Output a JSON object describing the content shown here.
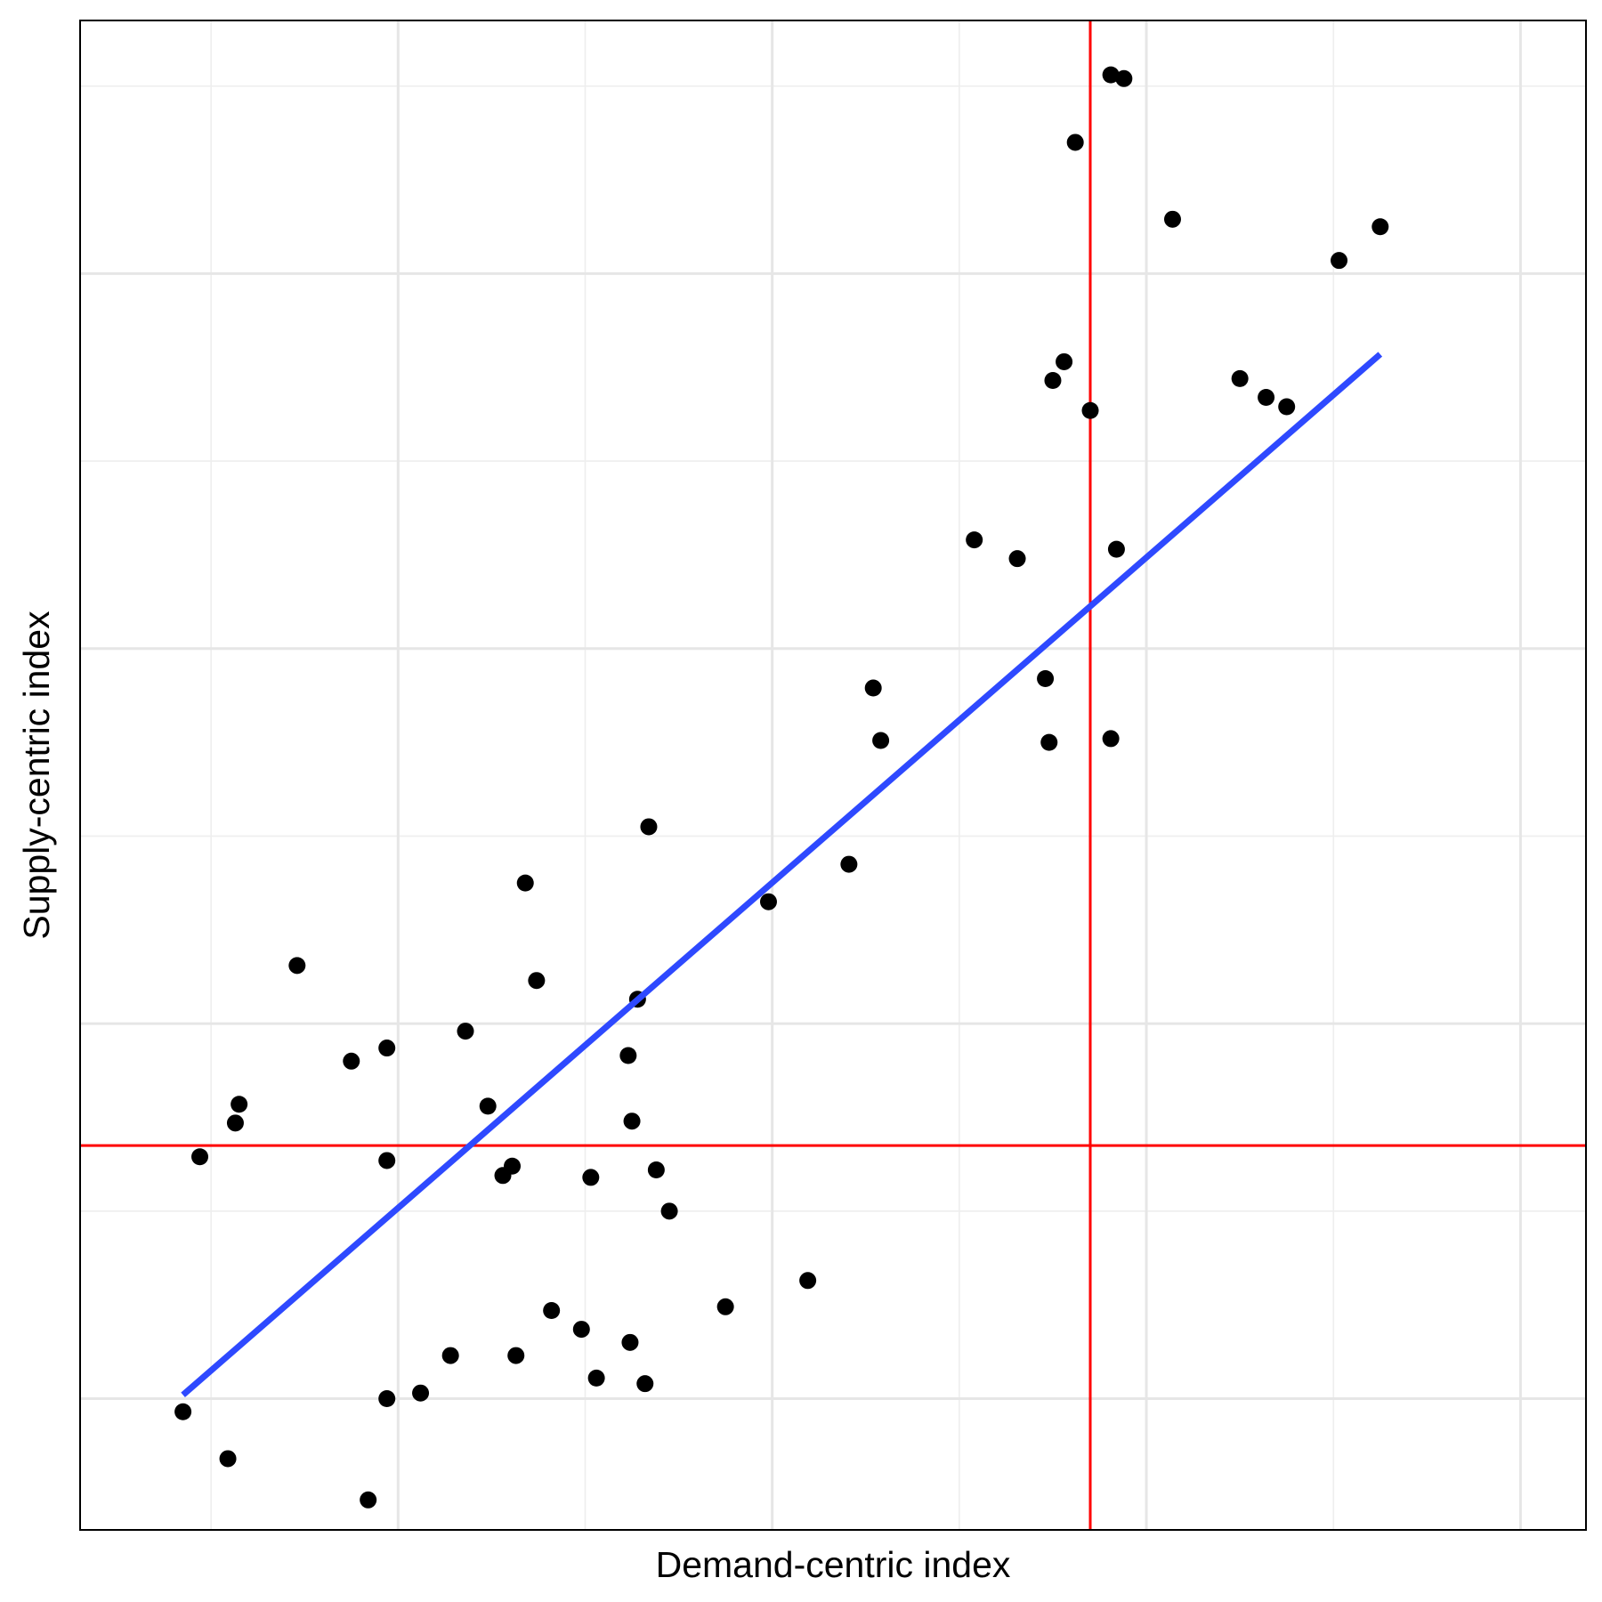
{
  "chart_data": {
    "type": "scatter",
    "title": "",
    "xlabel": "Demand-centric index",
    "ylabel": "Supply-centric index",
    "xlim": [
      -1.7,
      6.35
    ],
    "ylim": [
      -1.7,
      6.35
    ],
    "x_major_gridlines": [
      0,
      2,
      4,
      6
    ],
    "x_minor_gridlines": [
      -1,
      1,
      3,
      5
    ],
    "y_major_gridlines": [
      -1,
      1,
      3,
      5
    ],
    "y_minor_gridlines": [
      0,
      2,
      4,
      6
    ],
    "tick_labels_shown": false,
    "grid": true,
    "reference_lines": {
      "vertical_x": 3.7,
      "horizontal_y": 0.35,
      "color": "#ff0000"
    },
    "fit_line": {
      "color": "#2e49ff",
      "points": [
        [
          -1.15,
          -0.98
        ],
        [
          5.25,
          4.57
        ]
      ]
    },
    "point_color": "#000000",
    "points": [
      [
        -1.15,
        -1.07
      ],
      [
        -0.91,
        -1.32
      ],
      [
        -0.16,
        -1.54
      ],
      [
        -0.06,
        -1.0
      ],
      [
        0.12,
        -0.97
      ],
      [
        0.28,
        -0.77
      ],
      [
        0.63,
        -0.77
      ],
      [
        1.32,
        -0.92
      ],
      [
        0.98,
        -0.63
      ],
      [
        1.06,
        -0.89
      ],
      [
        0.82,
        -0.53
      ],
      [
        1.24,
        -0.7
      ],
      [
        1.75,
        -0.51
      ],
      [
        2.19,
        -0.37
      ],
      [
        1.45,
        0.0
      ],
      [
        1.03,
        0.18
      ],
      [
        1.25,
        0.48
      ],
      [
        0.48,
        0.56
      ],
      [
        -0.25,
        0.8
      ],
      [
        -0.06,
        0.87
      ],
      [
        0.36,
        0.96
      ],
      [
        -0.54,
        1.31
      ],
      [
        1.28,
        1.13
      ],
      [
        1.23,
        0.83
      ],
      [
        0.56,
        0.19
      ],
      [
        0.61,
        0.24
      ],
      [
        1.38,
        0.22
      ],
      [
        -0.06,
        0.27
      ],
      [
        -0.85,
        0.57
      ],
      [
        -1.06,
        0.29
      ],
      [
        -0.87,
        0.47
      ],
      [
        0.74,
        1.23
      ],
      [
        0.68,
        1.75
      ],
      [
        1.98,
        1.65
      ],
      [
        1.34,
        2.05
      ],
      [
        2.41,
        1.85
      ],
      [
        2.58,
        2.51
      ],
      [
        2.54,
        2.79
      ],
      [
        3.08,
        3.58
      ],
      [
        3.84,
        3.53
      ],
      [
        3.31,
        3.48
      ],
      [
        3.46,
        2.84
      ],
      [
        3.48,
        2.5
      ],
      [
        3.81,
        2.52
      ],
      [
        3.7,
        4.27
      ],
      [
        3.5,
        4.43
      ],
      [
        3.56,
        4.53
      ],
      [
        4.5,
        4.44
      ],
      [
        4.64,
        4.34
      ],
      [
        4.75,
        4.29
      ],
      [
        4.14,
        5.29
      ],
      [
        3.62,
        5.7
      ],
      [
        3.81,
        6.06
      ],
      [
        3.88,
        6.04
      ],
      [
        5.03,
        5.07
      ],
      [
        5.25,
        5.25
      ]
    ]
  }
}
